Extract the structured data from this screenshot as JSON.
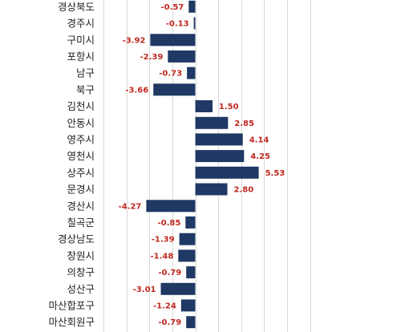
{
  "chart_data": {
    "type": "bar",
    "orientation": "horizontal",
    "categories": [
      "경상북도",
      "경주시",
      "구미시",
      "포항시",
      "남구",
      "북구",
      "김천시",
      "안동시",
      "영주시",
      "영천시",
      "상주시",
      "문경시",
      "경산시",
      "칠곡군",
      "경상남도",
      "창원시",
      "의창구",
      "성산구",
      "마산합포구",
      "마산회원구"
    ],
    "values": [
      -0.57,
      -0.13,
      -3.92,
      -2.39,
      -0.73,
      -3.66,
      1.5,
      2.85,
      4.14,
      4.25,
      5.53,
      2.8,
      -4.27,
      -0.85,
      -1.39,
      -1.48,
      -0.79,
      -3.01,
      -1.24,
      -0.79
    ],
    "value_labels": [
      "-0.57",
      "-0.13",
      "-3.92",
      "-2.39",
      "-0.73",
      "-3.66",
      "1.50",
      "2.85",
      "4.14",
      "4.25",
      "5.53",
      "2.80",
      "-4.27",
      "-0.85",
      "-1.39",
      "-1.48",
      "-0.79",
      "-3.01",
      "-1.24",
      "-0.79"
    ],
    "title": "",
    "xlabel": "",
    "ylabel": "",
    "xlim": [
      -8,
      10
    ],
    "grid": true,
    "legend": "none",
    "bar_color": "#1f3864",
    "label_color": "#c0281f",
    "gridline_color": "#d9d9d9"
  }
}
